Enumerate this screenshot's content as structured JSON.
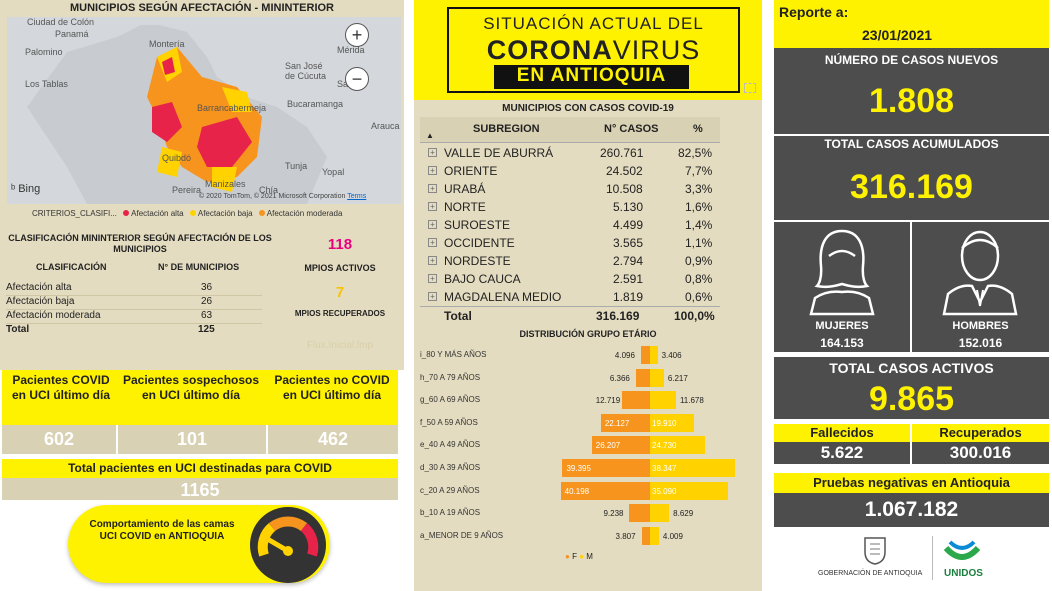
{
  "left": {
    "map_title": "MUNICIPIOS SEGÚN AFECTACIÓN - MININTERIOR",
    "map_places": [
      "Ciudad de Colón",
      "Panamá",
      "Montería",
      "Mérida",
      "San José de Cúcuta",
      "Bucaramanga",
      "Barrancabermeja",
      "Quibdó",
      "Tunja",
      "Yopal",
      "Pereira",
      "Manizales",
      "Chía",
      "Arauca",
      "Los Tablas",
      "Palomino",
      "San"
    ],
    "map_credit": "© 2020 TomTom, © 2021 Microsoft Corporation",
    "map_terms": "Terms",
    "bing": "Bing",
    "legend_title": "CRITERIOS_CLASIFI...",
    "legend": [
      {
        "label": "Afectación alta",
        "color": "#e8234a"
      },
      {
        "label": "Afectación baja",
        "color": "#ffd200"
      },
      {
        "label": "Afectación moderada",
        "color": "#f7941d"
      }
    ],
    "class_title": "CLASIFICACIÓN MININTERIOR SEGÚN AFECTACIÓN DE LOS MUNICIPIOS",
    "col1": "CLASIFICACIÓN",
    "col2": "N° DE MUNICIPIOS",
    "rows": [
      {
        "k": "Afectación alta",
        "v": "36"
      },
      {
        "k": "Afectación baja",
        "v": "26"
      },
      {
        "k": "Afectación moderada",
        "v": "63"
      }
    ],
    "total_label": "Total",
    "total_val": "125",
    "active_num": "118",
    "active_label": "MPIOS ACTIVOS",
    "recov_num": "7",
    "recov_label": "MPIOS RECUPERADOS",
    "faint": "Flux.Inicial.lmp",
    "uci_headers": [
      "Pacientes COVID en UCI último día",
      "Pacientes sospechosos en UCI último día",
      "Pacientes no COVID en UCI último día"
    ],
    "uci_vals": [
      "602",
      "101",
      "462"
    ],
    "uci_total_label": "Total pacientes en UCI destinadas para COVID",
    "uci_total": "1165",
    "gauge_text": "Comportamiento de las camas UCI COVID en ANTIOQUIA"
  },
  "mid": {
    "banner_l1": "SITUACIÓN ACTUAL DEL",
    "banner_l2a": "CORONA",
    "banner_l2b": "VIRUS",
    "banner_l3": "EN ANTIOQUIA",
    "table_title": "MUNICIPIOS CON CASOS COVID-19",
    "h_sub": "SUBREGION",
    "h_cases": "N° CASOS",
    "h_pct": "%",
    "rows": [
      {
        "n": "VALLE DE ABURRÁ",
        "c": "260.761",
        "p": "82,5%"
      },
      {
        "n": "ORIENTE",
        "c": "24.502",
        "p": "7,7%"
      },
      {
        "n": "URABÁ",
        "c": "10.508",
        "p": "3,3%"
      },
      {
        "n": "NORTE",
        "c": "5.130",
        "p": "1,6%"
      },
      {
        "n": "SUROESTE",
        "c": "4.499",
        "p": "1,4%"
      },
      {
        "n": "OCCIDENTE",
        "c": "3.565",
        "p": "1,1%"
      },
      {
        "n": "NORDESTE",
        "c": "2.794",
        "p": "0,9%"
      },
      {
        "n": "BAJO CAUCA",
        "c": "2.591",
        "p": "0,8%"
      },
      {
        "n": "MAGDALENA MEDIO",
        "c": "1.819",
        "p": "0,6%"
      }
    ],
    "total_label": "Total",
    "total_cases": "316.169",
    "total_pct": "100,0%",
    "chart_title": "DISTRIBUCIÓN GRUPO ETÁRIO",
    "legend_f": "F",
    "legend_m": "M"
  },
  "chart_data": {
    "type": "bar",
    "title": "DISTRIBUCIÓN GRUPO ETÁRIO",
    "categories": [
      "i_80 Y MÁS AÑOS",
      "h_70 A 79 AÑOS",
      "g_60 A 69 AÑOS",
      "f_50 A 59 AÑOS",
      "e_40 A 49 AÑOS",
      "d_30 A 39 AÑOS",
      "c_20 A 29 AÑOS",
      "b_10 A 19 AÑOS",
      "a_MENOR DE 9 AÑOS"
    ],
    "series": [
      {
        "name": "F",
        "color": "#f7941d",
        "values": [
          4096,
          6366,
          12719,
          22127,
          26207,
          39395,
          40198,
          9238,
          3807
        ],
        "labels": [
          "4.096",
          "6.366",
          "12.719",
          "22.127",
          "26.207",
          "39.395",
          "40.198",
          "9.238",
          "3.807"
        ]
      },
      {
        "name": "M",
        "color": "#ffd200",
        "values": [
          3406,
          6217,
          11678,
          19910,
          24730,
          38347,
          35090,
          8629,
          4009
        ],
        "labels": [
          "3.406",
          "6.217",
          "11.678",
          "19.910",
          "24.730",
          "38.347",
          "35.090",
          "8.629",
          "4.009"
        ]
      }
    ],
    "xmax": 45000,
    "legend": "bottom"
  },
  "right": {
    "report_label": "Reporte a:",
    "date": "23/01/2021",
    "new_label": "NÚMERO DE CASOS NUEVOS",
    "new_val": "1.808",
    "acc_label": "TOTAL CASOS ACUMULADOS",
    "acc_val": "316.169",
    "women_label": "MUJERES",
    "women_val": "164.153",
    "men_label": "HOMBRES",
    "men_val": "152.016",
    "active_label": "TOTAL CASOS ACTIVOS",
    "active_val": "9.865",
    "dead_label": "Fallecidos",
    "dead_val": "5.622",
    "rec_label": "Recuperados",
    "rec_val": "300.016",
    "neg_label": "Pruebas negativas en Antioquia",
    "neg_val": "1.067.182",
    "gov": "GOBERNACIÓN DE ANTIOQUIA",
    "unidos": "UNIDOS"
  }
}
